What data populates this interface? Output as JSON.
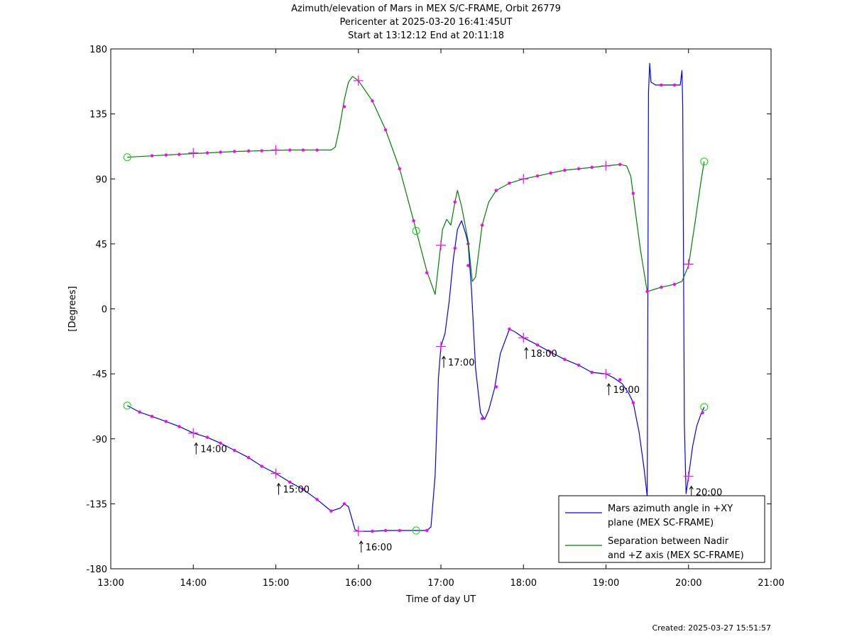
{
  "chart_data": {
    "type": "line",
    "title_lines": [
      "Azimuth/elevation of Mars in MEX S/C-FRAME,  Orbit 26779",
      "Pericenter at 2025-03-20 16:41:45UT",
      "Start at 13:12:12 End at 20:11:18"
    ],
    "xlabel": "Time of day UT",
    "ylabel": "[Degrees]",
    "xlim": [
      13.0,
      21.0
    ],
    "ylim": [
      -180,
      180
    ],
    "xticks": [
      13,
      14,
      15,
      16,
      17,
      18,
      19,
      20,
      21
    ],
    "xtick_labels": [
      "13:00",
      "14:00",
      "15:00",
      "16:00",
      "17:00",
      "18:00",
      "19:00",
      "20:00",
      "21:00"
    ],
    "yticks": [
      180,
      135,
      90,
      45,
      0,
      -45,
      -90,
      -135,
      -180
    ],
    "ytick_labels": [
      "180",
      "135",
      "90",
      "45",
      "0",
      "-45",
      "-90",
      "-135",
      "-180"
    ],
    "series": [
      {
        "name": "Mars azimuth angle in +XY plane (MEX SC-FRAME)",
        "legend_lines": [
          "Mars azimuth angle in +XY",
          "plane (MEX SC-FRAME)"
        ],
        "color": "#0000ff",
        "points": [
          [
            13.2,
            -67
          ],
          [
            13.35,
            -71.5
          ],
          [
            13.5,
            -74.5
          ],
          [
            13.67,
            -78
          ],
          [
            13.83,
            -81.5
          ],
          [
            14.0,
            -86
          ],
          [
            14.17,
            -89
          ],
          [
            14.33,
            -93
          ],
          [
            14.5,
            -98
          ],
          [
            14.67,
            -103
          ],
          [
            14.83,
            -109
          ],
          [
            15.0,
            -114
          ],
          [
            15.17,
            -120
          ],
          [
            15.33,
            -125
          ],
          [
            15.5,
            -132
          ],
          [
            15.67,
            -140
          ],
          [
            15.78,
            -138
          ],
          [
            15.83,
            -135
          ],
          [
            15.88,
            -137
          ],
          [
            15.92,
            -145
          ],
          [
            15.96,
            -153
          ],
          [
            16.0,
            -154
          ],
          [
            16.17,
            -154
          ],
          [
            16.33,
            -153.5
          ],
          [
            16.5,
            -153.5
          ],
          [
            16.7,
            -153.5
          ],
          [
            16.83,
            -153.5
          ],
          [
            16.88,
            -151
          ],
          [
            16.93,
            -115
          ],
          [
            16.97,
            -48
          ],
          [
            17.0,
            -26
          ],
          [
            17.05,
            -17
          ],
          [
            17.1,
            5
          ],
          [
            17.15,
            34
          ],
          [
            17.2,
            55
          ],
          [
            17.25,
            61
          ],
          [
            17.3,
            52
          ],
          [
            17.33,
            45
          ],
          [
            17.37,
            14
          ],
          [
            17.42,
            -41
          ],
          [
            17.48,
            -72
          ],
          [
            17.53,
            -76.5
          ],
          [
            17.58,
            -70
          ],
          [
            17.65,
            -55
          ],
          [
            17.72,
            -31
          ],
          [
            17.83,
            -14
          ],
          [
            17.9,
            -16
          ],
          [
            18.0,
            -20
          ],
          [
            18.17,
            -25
          ],
          [
            18.33,
            -30
          ],
          [
            18.5,
            -35
          ],
          [
            18.67,
            -39
          ],
          [
            18.83,
            -44
          ],
          [
            19.0,
            -45
          ],
          [
            19.1,
            -48
          ],
          [
            19.2,
            -52
          ],
          [
            19.28,
            -59
          ],
          [
            19.33,
            -65
          ],
          [
            19.4,
            -85
          ],
          [
            19.46,
            -110
          ],
          [
            19.5,
            -130
          ],
          [
            19.515,
            150
          ],
          [
            19.53,
            170
          ],
          [
            19.545,
            157
          ],
          [
            19.6,
            155
          ],
          [
            19.67,
            155
          ],
          [
            19.75,
            155
          ],
          [
            19.83,
            155
          ],
          [
            19.9,
            155
          ],
          [
            19.92,
            165
          ],
          [
            19.93,
            140
          ],
          [
            19.95,
            -80
          ],
          [
            19.97,
            -128
          ],
          [
            20.0,
            -116
          ],
          [
            20.05,
            -95
          ],
          [
            20.1,
            -81
          ],
          [
            20.15,
            -73
          ],
          [
            20.19,
            -68
          ]
        ],
        "markers": [
          [
            13.35,
            -71.5
          ],
          [
            13.5,
            -74.5
          ],
          [
            13.67,
            -78
          ],
          [
            13.83,
            -81.5
          ],
          [
            14.17,
            -89
          ],
          [
            14.33,
            -93
          ],
          [
            14.5,
            -98
          ],
          [
            14.67,
            -103
          ],
          [
            14.83,
            -109
          ],
          [
            15.17,
            -120
          ],
          [
            15.33,
            -125
          ],
          [
            15.5,
            -132
          ],
          [
            15.67,
            -140
          ],
          [
            15.83,
            -135
          ],
          [
            16.17,
            -154
          ],
          [
            16.33,
            -153.5
          ],
          [
            16.5,
            -153.5
          ],
          [
            16.83,
            -153.5
          ],
          [
            17.17,
            42
          ],
          [
            17.33,
            45
          ],
          [
            17.5,
            -76
          ],
          [
            17.67,
            -54
          ],
          [
            17.83,
            -14
          ],
          [
            18.17,
            -25
          ],
          [
            18.33,
            -30
          ],
          [
            18.5,
            -35
          ],
          [
            18.67,
            -39
          ],
          [
            18.83,
            -44
          ],
          [
            19.17,
            -49
          ],
          [
            19.33,
            -65
          ],
          [
            19.67,
            155
          ],
          [
            19.83,
            155
          ],
          [
            20.17,
            -72
          ]
        ],
        "hour_marks": [
          [
            14.0,
            -86
          ],
          [
            15.0,
            -114
          ],
          [
            16.0,
            -154
          ],
          [
            17.0,
            -26
          ],
          [
            18.0,
            -20
          ],
          [
            19.0,
            -45
          ],
          [
            20.0,
            -116
          ]
        ]
      },
      {
        "name": "Separation between Nadir and +Z axis (MEX SC-FRAME)",
        "legend_lines": [
          "Separation between Nadir",
          "and +Z axis (MEX SC-FRAME)"
        ],
        "color": "#008000",
        "points": [
          [
            13.2,
            105
          ],
          [
            13.5,
            106
          ],
          [
            13.83,
            107
          ],
          [
            14.17,
            108
          ],
          [
            14.5,
            109
          ],
          [
            14.83,
            109.5
          ],
          [
            15.17,
            110
          ],
          [
            15.5,
            110
          ],
          [
            15.67,
            110
          ],
          [
            15.72,
            112
          ],
          [
            15.77,
            125
          ],
          [
            15.83,
            145
          ],
          [
            15.88,
            157
          ],
          [
            15.93,
            161
          ],
          [
            16.0,
            158
          ],
          [
            16.17,
            144
          ],
          [
            16.33,
            124
          ],
          [
            16.5,
            97
          ],
          [
            16.67,
            61
          ],
          [
            16.83,
            26
          ],
          [
            16.93,
            10
          ],
          [
            16.97,
            30
          ],
          [
            17.02,
            55
          ],
          [
            17.07,
            62
          ],
          [
            17.12,
            58
          ],
          [
            17.17,
            74
          ],
          [
            17.2,
            82
          ],
          [
            17.25,
            71
          ],
          [
            17.33,
            47
          ],
          [
            17.38,
            19
          ],
          [
            17.42,
            22
          ],
          [
            17.5,
            58
          ],
          [
            17.58,
            74
          ],
          [
            17.67,
            82
          ],
          [
            17.83,
            87
          ],
          [
            18.0,
            90
          ],
          [
            18.17,
            92
          ],
          [
            18.33,
            94
          ],
          [
            18.5,
            96
          ],
          [
            18.67,
            97
          ],
          [
            18.83,
            98
          ],
          [
            19.0,
            99
          ],
          [
            19.17,
            100
          ],
          [
            19.25,
            99
          ],
          [
            19.3,
            92
          ],
          [
            19.35,
            70
          ],
          [
            19.42,
            40
          ],
          [
            19.5,
            12
          ],
          [
            19.67,
            15
          ],
          [
            19.83,
            17
          ],
          [
            19.92,
            19
          ],
          [
            20.0,
            30
          ],
          [
            20.08,
            60
          ],
          [
            20.15,
            88
          ],
          [
            20.19,
            102
          ]
        ],
        "markers": [
          [
            13.5,
            106
          ],
          [
            13.67,
            106.5
          ],
          [
            13.83,
            107
          ],
          [
            14.17,
            108
          ],
          [
            14.33,
            108.5
          ],
          [
            14.5,
            109
          ],
          [
            14.67,
            109.3
          ],
          [
            14.83,
            109.5
          ],
          [
            15.17,
            110
          ],
          [
            15.33,
            110
          ],
          [
            15.5,
            110
          ],
          [
            15.83,
            140
          ],
          [
            16.17,
            144
          ],
          [
            16.33,
            124
          ],
          [
            16.5,
            97
          ],
          [
            16.67,
            61
          ],
          [
            16.83,
            25
          ],
          [
            17.17,
            74
          ],
          [
            17.33,
            30
          ],
          [
            17.5,
            58
          ],
          [
            17.67,
            82
          ],
          [
            17.83,
            87
          ],
          [
            18.17,
            92
          ],
          [
            18.33,
            94
          ],
          [
            18.5,
            96
          ],
          [
            18.67,
            97
          ],
          [
            18.83,
            98
          ],
          [
            19.17,
            100
          ],
          [
            19.33,
            80
          ],
          [
            19.5,
            12
          ],
          [
            19.67,
            15
          ],
          [
            19.83,
            17
          ]
        ],
        "hour_marks": [
          [
            14.0,
            108
          ],
          [
            15.0,
            110
          ],
          [
            16.0,
            158
          ],
          [
            17.0,
            44
          ],
          [
            18.0,
            90
          ],
          [
            19.0,
            99
          ],
          [
            20.0,
            31
          ]
        ]
      }
    ],
    "circle_markers": [
      [
        13.2,
        105
      ],
      [
        13.2,
        -67
      ],
      [
        16.7,
        54
      ],
      [
        16.7,
        -153.5
      ],
      [
        20.19,
        102
      ],
      [
        20.19,
        -68
      ]
    ],
    "annotations": [
      {
        "label": "14:00",
        "x": 14.0,
        "y": -86
      },
      {
        "label": "15:00",
        "x": 15.0,
        "y": -114
      },
      {
        "label": "16:00",
        "x": 16.0,
        "y": -154
      },
      {
        "label": "17:00",
        "x": 17.0,
        "y": -26
      },
      {
        "label": "18:00",
        "x": 18.0,
        "y": -20
      },
      {
        "label": "19:00",
        "x": 19.0,
        "y": -45
      },
      {
        "label": "20:00",
        "x": 20.0,
        "y": -116
      }
    ],
    "legend_position": "bottom-right",
    "grid": false,
    "footer": "Created: 2025-03-27 15:51:57",
    "colors": {
      "marker": "#ff00ff",
      "circle": "#00dd00",
      "axis": "#000000"
    }
  }
}
